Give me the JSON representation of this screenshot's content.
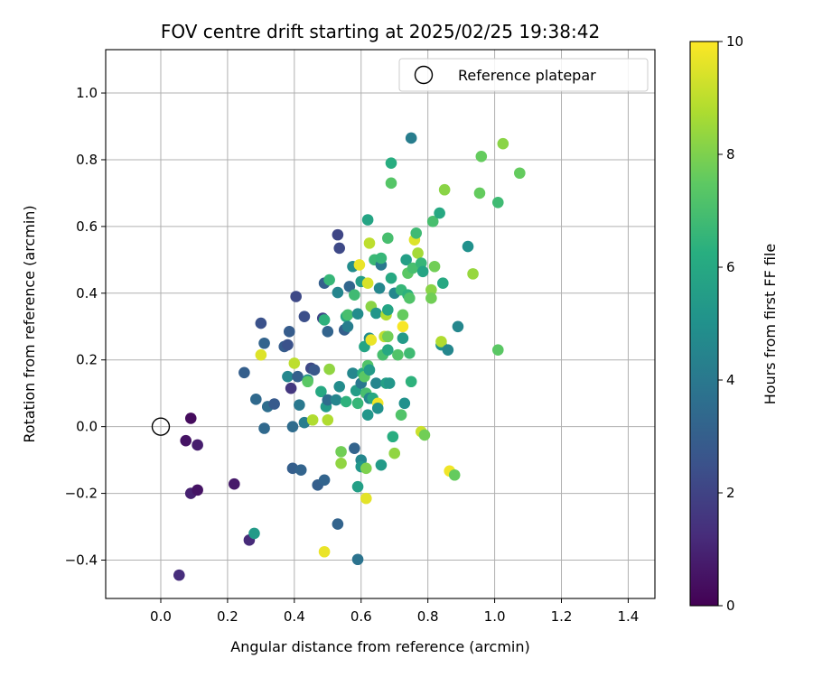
{
  "chart_data": {
    "type": "scatter",
    "title": "FOV centre drift starting at 2025/02/25 19:38:42",
    "xlabel": "Angular distance from reference (arcmin)",
    "ylabel": "Rotation from reference (arcmin)",
    "xlim": [
      -0.165,
      1.48
    ],
    "ylim": [
      -0.515,
      1.13
    ],
    "xticks": [
      0.0,
      0.2,
      0.4,
      0.6,
      0.8,
      1.0,
      1.2,
      1.4
    ],
    "yticks": [
      -0.4,
      -0.2,
      0.0,
      0.2,
      0.4,
      0.6,
      0.8,
      1.0
    ],
    "grid": true,
    "legend": {
      "position": "top-right",
      "entries": [
        "Reference platepar"
      ]
    },
    "reference_point": {
      "x": 0.0,
      "y": 0.0
    },
    "colorbar": {
      "label": "Hours from first FF file",
      "range": [
        0,
        10
      ],
      "ticks": [
        0,
        2,
        4,
        6,
        8,
        10
      ],
      "colormap": "viridis"
    },
    "points": [
      {
        "x": 0.09,
        "y": 0.025,
        "h": 0.3
      },
      {
        "x": 0.075,
        "y": -0.042,
        "h": 0.5
      },
      {
        "x": 0.11,
        "y": -0.055,
        "h": 0.8
      },
      {
        "x": 0.09,
        "y": -0.2,
        "h": 0.9
      },
      {
        "x": 0.11,
        "y": -0.19,
        "h": 0.5
      },
      {
        "x": 0.055,
        "y": -0.445,
        "h": 1.3
      },
      {
        "x": 0.22,
        "y": -0.172,
        "h": 0.7
      },
      {
        "x": 0.265,
        "y": -0.34,
        "h": 1.2
      },
      {
        "x": 0.28,
        "y": -0.32,
        "h": 5.4
      },
      {
        "x": 0.25,
        "y": 0.162,
        "h": 3.0
      },
      {
        "x": 0.285,
        "y": 0.082,
        "h": 3.4
      },
      {
        "x": 0.3,
        "y": 0.31,
        "h": 2.5
      },
      {
        "x": 0.31,
        "y": 0.25,
        "h": 3.2
      },
      {
        "x": 0.3,
        "y": 0.215,
        "h": 9.5
      },
      {
        "x": 0.31,
        "y": -0.005,
        "h": 3.4
      },
      {
        "x": 0.32,
        "y": 0.06,
        "h": 3.6
      },
      {
        "x": 0.34,
        "y": 0.068,
        "h": 2.8
      },
      {
        "x": 0.37,
        "y": 0.24,
        "h": 2.9
      },
      {
        "x": 0.38,
        "y": 0.245,
        "h": 2.5
      },
      {
        "x": 0.385,
        "y": 0.285,
        "h": 2.9
      },
      {
        "x": 0.38,
        "y": 0.15,
        "h": 4.6
      },
      {
        "x": 0.39,
        "y": 0.115,
        "h": 1.6
      },
      {
        "x": 0.395,
        "y": 0.0,
        "h": 3.5
      },
      {
        "x": 0.395,
        "y": -0.125,
        "h": 3.0
      },
      {
        "x": 0.405,
        "y": 0.39,
        "h": 2.2
      },
      {
        "x": 0.41,
        "y": 0.15,
        "h": 3.0
      },
      {
        "x": 0.4,
        "y": 0.19,
        "h": 9.0
      },
      {
        "x": 0.415,
        "y": 0.065,
        "h": 4.0
      },
      {
        "x": 0.42,
        "y": -0.13,
        "h": 3.2
      },
      {
        "x": 0.43,
        "y": 0.33,
        "h": 2.4
      },
      {
        "x": 0.43,
        "y": 0.012,
        "h": 4.2
      },
      {
        "x": 0.44,
        "y": 0.14,
        "h": 5.0
      },
      {
        "x": 0.44,
        "y": 0.135,
        "h": 7.4
      },
      {
        "x": 0.45,
        "y": 0.175,
        "h": 2.2
      },
      {
        "x": 0.455,
        "y": 0.02,
        "h": 8.8
      },
      {
        "x": 0.46,
        "y": 0.17,
        "h": 2.7
      },
      {
        "x": 0.47,
        "y": -0.175,
        "h": 3.0
      },
      {
        "x": 0.48,
        "y": 0.105,
        "h": 6.0
      },
      {
        "x": 0.485,
        "y": 0.325,
        "h": 2.1
      },
      {
        "x": 0.49,
        "y": 0.32,
        "h": 6.4
      },
      {
        "x": 0.49,
        "y": 0.43,
        "h": 3.0
      },
      {
        "x": 0.49,
        "y": -0.16,
        "h": 3.2
      },
      {
        "x": 0.49,
        "y": -0.375,
        "h": 9.7
      },
      {
        "x": 0.495,
        "y": 0.06,
        "h": 5.4
      },
      {
        "x": 0.5,
        "y": 0.08,
        "h": 3.5
      },
      {
        "x": 0.5,
        "y": 0.02,
        "h": 8.8
      },
      {
        "x": 0.5,
        "y": 0.285,
        "h": 3.2
      },
      {
        "x": 0.505,
        "y": 0.44,
        "h": 6.6
      },
      {
        "x": 0.505,
        "y": 0.172,
        "h": 8.3
      },
      {
        "x": 0.525,
        "y": 0.08,
        "h": 4.5
      },
      {
        "x": 0.53,
        "y": 0.575,
        "h": 2.1
      },
      {
        "x": 0.53,
        "y": 0.402,
        "h": 4.5
      },
      {
        "x": 0.53,
        "y": -0.292,
        "h": 3.2
      },
      {
        "x": 0.535,
        "y": 0.535,
        "h": 2.2
      },
      {
        "x": 0.535,
        "y": 0.12,
        "h": 4.8
      },
      {
        "x": 0.54,
        "y": -0.075,
        "h": 7.8
      },
      {
        "x": 0.54,
        "y": -0.11,
        "h": 8.3
      },
      {
        "x": 0.55,
        "y": 0.29,
        "h": 3.0
      },
      {
        "x": 0.555,
        "y": 0.33,
        "h": 6.0
      },
      {
        "x": 0.56,
        "y": 0.335,
        "h": 7.0
      },
      {
        "x": 0.555,
        "y": 0.075,
        "h": 6.4
      },
      {
        "x": 0.56,
        "y": 0.3,
        "h": 4.2
      },
      {
        "x": 0.565,
        "y": 0.42,
        "h": 3.3
      },
      {
        "x": 0.575,
        "y": 0.48,
        "h": 4.8
      },
      {
        "x": 0.575,
        "y": 0.16,
        "h": 4.6
      },
      {
        "x": 0.58,
        "y": 0.395,
        "h": 6.8
      },
      {
        "x": 0.58,
        "y": -0.065,
        "h": 3.2
      },
      {
        "x": 0.585,
        "y": 0.108,
        "h": 5.5
      },
      {
        "x": 0.59,
        "y": 0.338,
        "h": 4.8
      },
      {
        "x": 0.59,
        "y": 0.07,
        "h": 6.6
      },
      {
        "x": 0.59,
        "y": -0.18,
        "h": 5.6
      },
      {
        "x": 0.59,
        "y": -0.398,
        "h": 3.8
      },
      {
        "x": 0.595,
        "y": 0.485,
        "h": 9.7
      },
      {
        "x": 0.6,
        "y": 0.435,
        "h": 5.5
      },
      {
        "x": 0.6,
        "y": -0.1,
        "h": 4.6
      },
      {
        "x": 0.6,
        "y": 0.13,
        "h": 4.0
      },
      {
        "x": 0.6,
        "y": -0.12,
        "h": 5.2
      },
      {
        "x": 0.605,
        "y": 0.16,
        "h": 6.2
      },
      {
        "x": 0.61,
        "y": 0.24,
        "h": 5.8
      },
      {
        "x": 0.61,
        "y": 0.15,
        "h": 7.4
      },
      {
        "x": 0.615,
        "y": -0.215,
        "h": 9.6
      },
      {
        "x": 0.615,
        "y": -0.125,
        "h": 8.0
      },
      {
        "x": 0.615,
        "y": 0.1,
        "h": 7.0
      },
      {
        "x": 0.62,
        "y": 0.183,
        "h": 7.2
      },
      {
        "x": 0.62,
        "y": 0.62,
        "h": 5.8
      },
      {
        "x": 0.62,
        "y": 0.43,
        "h": 9.4
      },
      {
        "x": 0.62,
        "y": 0.035,
        "h": 5.2
      },
      {
        "x": 0.625,
        "y": 0.085,
        "h": 4.6
      },
      {
        "x": 0.625,
        "y": 0.55,
        "h": 9.0
      },
      {
        "x": 0.625,
        "y": 0.265,
        "h": 4.8
      },
      {
        "x": 0.625,
        "y": 0.17,
        "h": 5.4
      },
      {
        "x": 0.63,
        "y": 0.36,
        "h": 8.2
      },
      {
        "x": 0.63,
        "y": 0.26,
        "h": 9.7
      },
      {
        "x": 0.635,
        "y": 0.085,
        "h": 6.0
      },
      {
        "x": 0.64,
        "y": 0.5,
        "h": 6.7
      },
      {
        "x": 0.645,
        "y": 0.34,
        "h": 5.2
      },
      {
        "x": 0.645,
        "y": 0.13,
        "h": 4.5
      },
      {
        "x": 0.65,
        "y": 0.07,
        "h": 9.8
      },
      {
        "x": 0.65,
        "y": 0.055,
        "h": 5.0
      },
      {
        "x": 0.655,
        "y": 0.415,
        "h": 4.6
      },
      {
        "x": 0.66,
        "y": 0.485,
        "h": 4.0
      },
      {
        "x": 0.66,
        "y": 0.505,
        "h": 6.6
      },
      {
        "x": 0.66,
        "y": -0.115,
        "h": 5.4
      },
      {
        "x": 0.665,
        "y": 0.215,
        "h": 7.0
      },
      {
        "x": 0.67,
        "y": 0.27,
        "h": 9.0
      },
      {
        "x": 0.675,
        "y": 0.335,
        "h": 8.8
      },
      {
        "x": 0.675,
        "y": 0.13,
        "h": 5.6
      },
      {
        "x": 0.68,
        "y": 0.565,
        "h": 7.0
      },
      {
        "x": 0.68,
        "y": 0.35,
        "h": 5.8
      },
      {
        "x": 0.68,
        "y": 0.27,
        "h": 7.8
      },
      {
        "x": 0.68,
        "y": 0.23,
        "h": 6.0
      },
      {
        "x": 0.685,
        "y": 0.13,
        "h": 5.2
      },
      {
        "x": 0.69,
        "y": 0.73,
        "h": 7.3
      },
      {
        "x": 0.69,
        "y": 0.79,
        "h": 6.2
      },
      {
        "x": 0.69,
        "y": 0.445,
        "h": 6.0
      },
      {
        "x": 0.695,
        "y": -0.03,
        "h": 6.2
      },
      {
        "x": 0.7,
        "y": 0.4,
        "h": 4.6
      },
      {
        "x": 0.7,
        "y": -0.08,
        "h": 8.3
      },
      {
        "x": 0.71,
        "y": 0.215,
        "h": 7.2
      },
      {
        "x": 0.72,
        "y": 0.41,
        "h": 6.6
      },
      {
        "x": 0.72,
        "y": 0.035,
        "h": 7.2
      },
      {
        "x": 0.725,
        "y": 0.3,
        "h": 9.9
      },
      {
        "x": 0.725,
        "y": 0.335,
        "h": 7.6
      },
      {
        "x": 0.725,
        "y": 0.265,
        "h": 5.4
      },
      {
        "x": 0.73,
        "y": 0.07,
        "h": 5.0
      },
      {
        "x": 0.735,
        "y": 0.5,
        "h": 5.6
      },
      {
        "x": 0.74,
        "y": 0.395,
        "h": 6.4
      },
      {
        "x": 0.74,
        "y": 0.46,
        "h": 7.4
      },
      {
        "x": 0.745,
        "y": 0.385,
        "h": 7.2
      },
      {
        "x": 0.745,
        "y": 0.22,
        "h": 6.8
      },
      {
        "x": 0.75,
        "y": 0.865,
        "h": 4.2
      },
      {
        "x": 0.75,
        "y": 0.135,
        "h": 6.4
      },
      {
        "x": 0.755,
        "y": 0.475,
        "h": 7.0
      },
      {
        "x": 0.76,
        "y": 0.56,
        "h": 9.5
      },
      {
        "x": 0.765,
        "y": 0.58,
        "h": 6.8
      },
      {
        "x": 0.77,
        "y": 0.52,
        "h": 8.6
      },
      {
        "x": 0.78,
        "y": -0.015,
        "h": 9.2
      },
      {
        "x": 0.78,
        "y": 0.49,
        "h": 6.6
      },
      {
        "x": 0.785,
        "y": 0.465,
        "h": 5.8
      },
      {
        "x": 0.79,
        "y": -0.025,
        "h": 7.8
      },
      {
        "x": 0.81,
        "y": 0.41,
        "h": 8.2
      },
      {
        "x": 0.81,
        "y": 0.385,
        "h": 7.8
      },
      {
        "x": 0.815,
        "y": 0.615,
        "h": 7.0
      },
      {
        "x": 0.82,
        "y": 0.48,
        "h": 7.8
      },
      {
        "x": 0.835,
        "y": 0.64,
        "h": 6.0
      },
      {
        "x": 0.84,
        "y": 0.245,
        "h": 5.0
      },
      {
        "x": 0.84,
        "y": 0.255,
        "h": 8.8
      },
      {
        "x": 0.845,
        "y": 0.43,
        "h": 6.0
      },
      {
        "x": 0.85,
        "y": 0.71,
        "h": 8.2
      },
      {
        "x": 0.86,
        "y": 0.23,
        "h": 4.6
      },
      {
        "x": 0.865,
        "y": -0.133,
        "h": 9.8
      },
      {
        "x": 0.88,
        "y": -0.145,
        "h": 7.6
      },
      {
        "x": 0.89,
        "y": 0.3,
        "h": 4.6
      },
      {
        "x": 0.92,
        "y": 0.54,
        "h": 5.0
      },
      {
        "x": 0.935,
        "y": 0.458,
        "h": 8.4
      },
      {
        "x": 0.955,
        "y": 0.7,
        "h": 7.6
      },
      {
        "x": 0.96,
        "y": 0.81,
        "h": 7.6
      },
      {
        "x": 1.01,
        "y": 0.23,
        "h": 7.4
      },
      {
        "x": 1.01,
        "y": 0.672,
        "h": 6.8
      },
      {
        "x": 1.025,
        "y": 0.848,
        "h": 8.2
      },
      {
        "x": 1.075,
        "y": 0.76,
        "h": 7.6
      }
    ]
  }
}
